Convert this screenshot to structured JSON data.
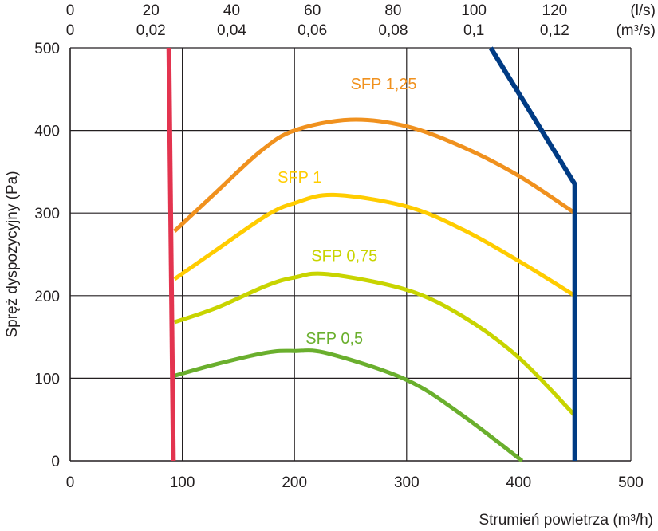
{
  "chart_data": {
    "type": "line",
    "xlabel": "Strumień powietrza (m³/h)",
    "ylabel": "Spręż dyspozycyjny (Pa)",
    "xlim": [
      0,
      500
    ],
    "ylim": [
      0,
      500
    ],
    "x_ticks": [
      "0",
      "100",
      "200",
      "300",
      "400",
      "500"
    ],
    "y_ticks": [
      "0",
      "100",
      "200",
      "300",
      "400",
      "500"
    ],
    "secondary_x_axes": [
      {
        "unit": "(l/s)",
        "ticks": [
          "0",
          "20",
          "40",
          "60",
          "80",
          "100",
          "120"
        ],
        "values": [
          0,
          20,
          40,
          60,
          80,
          100,
          120
        ],
        "factor": 3.6
      },
      {
        "unit": "(m³/s)",
        "ticks": [
          "0",
          "0,02",
          "0,04",
          "0,06",
          "0,08",
          "0,1",
          "0,12"
        ],
        "values": [
          0,
          0.02,
          0.04,
          0.06,
          0.08,
          0.1,
          0.12
        ],
        "factor": 3600
      }
    ],
    "grid": true,
    "series": [
      {
        "name": "SFP 1,25",
        "color": "#f0911e",
        "x": [
          93,
          130,
          170,
          200,
          250,
          300,
          350,
          400,
          450
        ],
        "y": [
          278,
          325,
          375,
          400,
          413,
          405,
          380,
          345,
          300
        ]
      },
      {
        "name": "SFP 1",
        "color": "#ffcc00",
        "x": [
          93,
          130,
          175,
          200,
          235,
          300,
          350,
          400,
          450
        ],
        "y": [
          220,
          255,
          297,
          312,
          322,
          308,
          280,
          242,
          200
        ]
      },
      {
        "name": "SFP 0,75",
        "color": "#c8d400",
        "x": [
          93,
          130,
          175,
          200,
          230,
          300,
          350,
          400,
          450
        ],
        "y": [
          168,
          185,
          212,
          222,
          226,
          207,
          175,
          125,
          55
        ]
      },
      {
        "name": "SFP 0,5",
        "color": "#6aaf2d",
        "x": [
          93,
          130,
          175,
          200,
          230,
          300,
          350,
          403
        ],
        "y": [
          103,
          117,
          131,
          133,
          130,
          98,
          55,
          0
        ]
      },
      {
        "name": "",
        "color": "#e3344f",
        "x": [
          88,
          92
        ],
        "y": [
          500,
          0
        ]
      },
      {
        "name": "",
        "color": "#003b84",
        "x": [
          375,
          450,
          450
        ],
        "y": [
          500,
          335,
          0
        ]
      }
    ]
  }
}
